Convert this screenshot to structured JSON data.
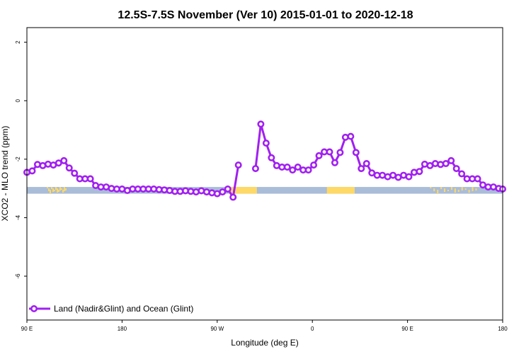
{
  "chart_data": {
    "type": "line",
    "title": "12.5S-7.5S November (Ver 10)   2015-01-01 to 2020-12-18",
    "xlabel": "Longitude (deg E)",
    "ylabel": "XCO2 - MLO trend (ppm)",
    "xlim": [
      90,
      450
    ],
    "ylim": [
      -7.5,
      2.5
    ],
    "x_ticks": [
      {
        "value": 90,
        "label": "90 E"
      },
      {
        "value": 162,
        "label": "180"
      },
      {
        "value": 234,
        "label": "90 W"
      },
      {
        "value": 306,
        "label": "0"
      },
      {
        "value": 378,
        "label": "90 E"
      },
      {
        "value": 450,
        "label": "180"
      }
    ],
    "y_ticks": [
      {
        "value": 2,
        "label": "2"
      },
      {
        "value": 0,
        "label": "0"
      },
      {
        "value": -2,
        "label": "-2"
      },
      {
        "value": -4,
        "label": "-4"
      },
      {
        "value": -6,
        "label": "-6"
      }
    ],
    "grid": false,
    "legend_position": "bottom-left",
    "series": [
      {
        "name": "Land (Nadir&Glint) and Ocean (Glint)",
        "color": "#a020f0",
        "segments": [
          [
            [
              90,
              -2.45
            ],
            [
              94,
              -2.4
            ],
            [
              98,
              -2.18
            ],
            [
              102,
              -2.22
            ],
            [
              106,
              -2.17
            ],
            [
              110,
              -2.2
            ],
            [
              114,
              -2.13
            ],
            [
              118,
              -2.05
            ],
            [
              122,
              -2.3
            ],
            [
              126,
              -2.48
            ],
            [
              130,
              -2.67
            ],
            [
              134,
              -2.67
            ],
            [
              138,
              -2.67
            ],
            [
              142,
              -2.9
            ],
            [
              146,
              -2.95
            ],
            [
              150,
              -2.95
            ],
            [
              154,
              -3.0
            ],
            [
              158,
              -3.02
            ],
            [
              162,
              -3.02
            ],
            [
              166,
              -3.07
            ],
            [
              170,
              -3.02
            ],
            [
              174,
              -3.02
            ],
            [
              178,
              -3.02
            ],
            [
              182,
              -3.02
            ],
            [
              186,
              -3.02
            ],
            [
              190,
              -3.04
            ],
            [
              194,
              -3.05
            ],
            [
              198,
              -3.07
            ],
            [
              202,
              -3.1
            ],
            [
              206,
              -3.1
            ],
            [
              210,
              -3.08
            ],
            [
              214,
              -3.1
            ],
            [
              218,
              -3.12
            ],
            [
              222,
              -3.08
            ],
            [
              226,
              -3.12
            ],
            [
              230,
              -3.15
            ],
            [
              234,
              -3.18
            ],
            [
              238,
              -3.12
            ],
            [
              242,
              -3.02
            ],
            [
              246,
              -3.3
            ],
            [
              250,
              -2.2
            ]
          ],
          [
            [
              263,
              -2.32
            ],
            [
              267,
              -0.8
            ],
            [
              271,
              -1.45
            ],
            [
              275,
              -1.95
            ],
            [
              279,
              -2.22
            ],
            [
              283,
              -2.27
            ],
            [
              287,
              -2.27
            ],
            [
              291,
              -2.37
            ],
            [
              295,
              -2.27
            ],
            [
              299,
              -2.37
            ],
            [
              303,
              -2.37
            ],
            [
              307,
              -2.2
            ],
            [
              311,
              -1.88
            ],
            [
              315,
              -1.75
            ],
            [
              319,
              -1.75
            ],
            [
              323,
              -2.12
            ],
            [
              327,
              -1.77
            ],
            [
              331,
              -1.25
            ],
            [
              335,
              -1.22
            ],
            [
              339,
              -1.77
            ],
            [
              343,
              -2.32
            ],
            [
              347,
              -2.15
            ],
            [
              351,
              -2.47
            ],
            [
              355,
              -2.55
            ],
            [
              359,
              -2.55
            ],
            [
              363,
              -2.6
            ],
            [
              367,
              -2.55
            ],
            [
              371,
              -2.62
            ],
            [
              375,
              -2.55
            ],
            [
              379,
              -2.6
            ],
            [
              383,
              -2.45
            ],
            [
              387,
              -2.42
            ],
            [
              391,
              -2.17
            ],
            [
              395,
              -2.22
            ],
            [
              399,
              -2.15
            ],
            [
              403,
              -2.18
            ],
            [
              407,
              -2.15
            ],
            [
              411,
              -2.05
            ],
            [
              415,
              -2.32
            ],
            [
              419,
              -2.5
            ],
            [
              423,
              -2.67
            ],
            [
              427,
              -2.67
            ],
            [
              431,
              -2.67
            ],
            [
              435,
              -2.88
            ],
            [
              439,
              -2.95
            ],
            [
              443,
              -2.95
            ],
            [
              447,
              -3.0
            ],
            [
              450,
              -3.02
            ]
          ]
        ]
      }
    ],
    "surface_band": {
      "y_range": [
        -2.95,
        -3.18
      ],
      "ocean_color": "#a9bcd8",
      "land_color": "#ffd966",
      "land_spans": [
        [
          243,
          264
        ],
        [
          317,
          338
        ]
      ],
      "land_specks": [
        [
          105,
          120
        ],
        [
          395,
          432
        ]
      ]
    }
  }
}
